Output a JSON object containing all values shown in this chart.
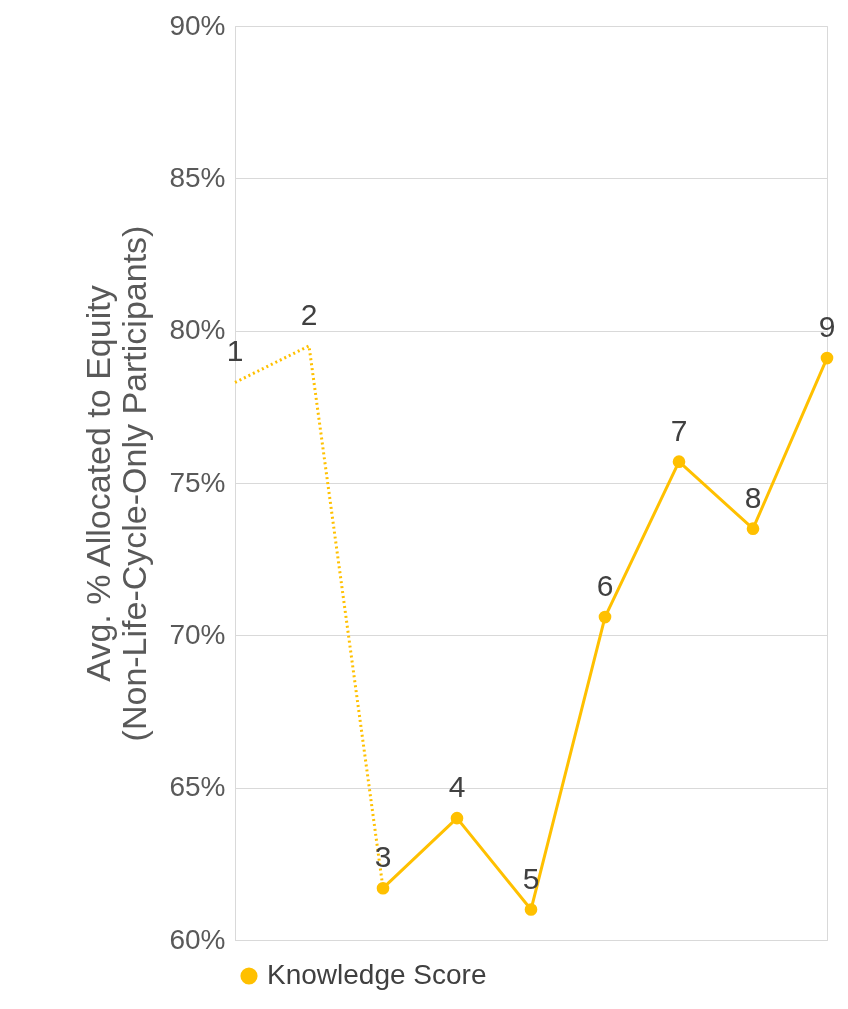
{
  "chart_data": {
    "type": "line",
    "ylabel": "Avg. % Allocated to Equity\n(Non-Life-Cycle-Only Participants)",
    "categories": [
      null,
      null,
      null,
      null,
      null,
      null,
      null,
      null,
      null
    ],
    "ylim": [
      60,
      90
    ],
    "yticks": [
      {
        "value": 60,
        "label": "60%"
      },
      {
        "value": 65,
        "label": "65%"
      },
      {
        "value": 70,
        "label": "70%"
      },
      {
        "value": 75,
        "label": "75%"
      },
      {
        "value": 80,
        "label": "80%"
      },
      {
        "value": 85,
        "label": "85%"
      },
      {
        "value": 90,
        "label": "90%"
      }
    ],
    "grid": "y",
    "legend": "bottom",
    "series": [
      {
        "color": "#ffc000",
        "values": [
          78.3,
          79.5,
          61.7,
          null,
          null,
          null,
          null,
          null,
          null
        ],
        "line_style": "dotted",
        "marker": "none"
      },
      {
        "name": "Knowledge Score",
        "color": "#ffc000",
        "values": [
          null,
          null,
          61.7,
          64.0,
          61.0,
          70.6,
          75.7,
          73.5,
          79.1
        ],
        "line_style": "solid",
        "marker": "circle"
      }
    ],
    "annotations": [
      {
        "text": "1",
        "y": 78.3
      },
      {
        "text": "2",
        "y": 79.5
      },
      {
        "text": "3",
        "y": 61.7
      },
      {
        "text": "4",
        "y": 64.0
      },
      {
        "text": "5",
        "y": 61.0
      },
      {
        "text": "6",
        "y": 70.6
      },
      {
        "text": "7",
        "y": 75.7
      },
      {
        "text": "8",
        "y": 73.5
      },
      {
        "text": "9",
        "y": 79.1
      }
    ]
  }
}
